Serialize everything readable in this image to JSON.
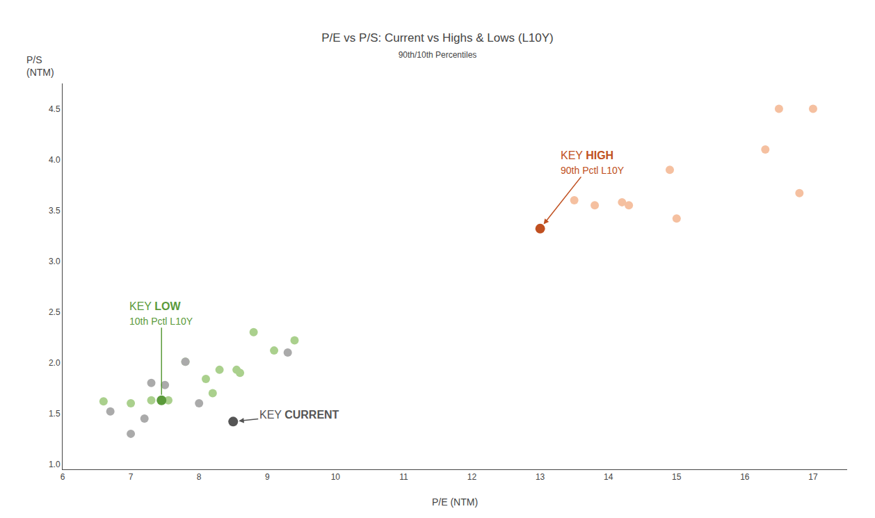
{
  "chart_data": {
    "type": "scatter",
    "title": "P/E vs P/S: Current vs Highs & Lows (L10Y)",
    "subtitle": "90th/10th Percentiles",
    "x_label": "P/E (NTM)",
    "y_label": "P/S\n(NTM)",
    "xlim": [
      6,
      17.5
    ],
    "ylim": [
      0.95,
      4.75
    ],
    "xticks": [
      6,
      7,
      8,
      9,
      10,
      11,
      12,
      13,
      14,
      15,
      16,
      17
    ],
    "yticks": [
      {
        "value": 1.0,
        "label": "1.0"
      },
      {
        "value": 1.5,
        "label": "1.5"
      },
      {
        "value": 2.0,
        "label": "2.0"
      },
      {
        "value": 2.5,
        "label": "2.5"
      },
      {
        "value": 3.0,
        "label": "3.0"
      },
      {
        "value": 3.5,
        "label": "3.5"
      },
      {
        "value": 4.0,
        "label": "4.0"
      },
      {
        "value": 4.5,
        "label": "4.5"
      }
    ],
    "grid": false,
    "series": [
      {
        "color": "#aad08d",
        "x": [
          6.6,
          7.0,
          7.3,
          7.55,
          7.8,
          8.1,
          8.2,
          8.3,
          8.55,
          8.6,
          8.8,
          9.1,
          9.4
        ],
        "values": [
          1.62,
          1.6,
          1.63,
          1.63,
          2.01,
          1.84,
          1.7,
          1.93,
          1.93,
          1.9,
          2.3,
          2.12,
          2.22
        ]
      },
      {
        "color": "#5a9a3a",
        "x": [
          7.45
        ],
        "values": [
          1.63
        ]
      },
      {
        "color": "#aaaaaa",
        "x": [
          6.7,
          7.0,
          7.2,
          7.3,
          7.5,
          7.8,
          8.0,
          9.3
        ],
        "values": [
          1.52,
          1.3,
          1.45,
          1.8,
          1.78,
          2.01,
          1.6,
          2.1
        ]
      },
      {
        "color": "#555555",
        "x": [
          8.5
        ],
        "values": [
          1.42
        ]
      },
      {
        "color": "#f5c0a0",
        "x": [
          13.5,
          13.8,
          14.2,
          14.3,
          14.9,
          15.0,
          16.3,
          16.5,
          16.8,
          17.0
        ],
        "values": [
          3.6,
          3.55,
          3.58,
          3.55,
          3.9,
          3.42,
          4.1,
          4.5,
          3.67,
          4.5
        ]
      },
      {
        "color": "#c05020",
        "x": [
          13.0
        ],
        "values": [
          3.32
        ]
      }
    ],
    "annotations": [
      {
        "text": "KEY LOW\n10th Pctl L10Y",
        "color": "#5a9a3a",
        "x": 7.45,
        "y": 1.63
      },
      {
        "text": "KEY CURRENT",
        "color": "#555555",
        "x": 8.5,
        "y": 1.42
      },
      {
        "text": "KEY HIGH\n90th Pctl L10Y",
        "color": "#c05020",
        "x": 13.0,
        "y": 3.32
      }
    ]
  }
}
